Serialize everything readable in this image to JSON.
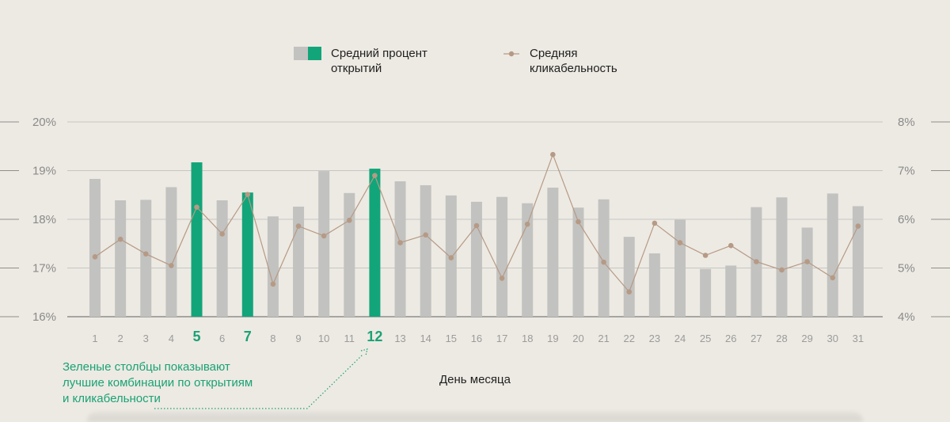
{
  "chart_data": {
    "type": "bar",
    "xlabel": "День месяца",
    "categories": [
      "1",
      "2",
      "3",
      "4",
      "5",
      "6",
      "7",
      "8",
      "9",
      "10",
      "11",
      "12",
      "13",
      "14",
      "15",
      "16",
      "17",
      "18",
      "19",
      "20",
      "21",
      "22",
      "23",
      "24",
      "25",
      "26",
      "27",
      "28",
      "29",
      "30",
      "31"
    ],
    "highlighted": [
      "5",
      "7",
      "12"
    ],
    "y_left": {
      "ylim": [
        16,
        20
      ],
      "ticks": [
        "16%",
        "17%",
        "18%",
        "19%",
        "20%"
      ]
    },
    "y_right": {
      "ylim": [
        4,
        8
      ],
      "ticks": [
        "4%",
        "5%",
        "6%",
        "7%",
        "8%"
      ]
    },
    "series": [
      {
        "name": "Средний процент открытий",
        "type": "bar",
        "axis": "left",
        "values": [
          18.83,
          18.39,
          18.4,
          18.66,
          19.17,
          18.39,
          18.55,
          18.06,
          18.26,
          18.99,
          18.54,
          19.04,
          18.78,
          18.7,
          18.49,
          18.36,
          18.46,
          18.33,
          18.65,
          18.24,
          18.41,
          17.64,
          17.3,
          17.99,
          16.98,
          17.05,
          18.25,
          18.45,
          17.83,
          18.53,
          18.27
        ]
      },
      {
        "name": "Средняя кликабельность",
        "type": "line",
        "axis": "right",
        "values": [
          5.23,
          5.59,
          5.29,
          5.05,
          6.25,
          5.7,
          6.51,
          4.67,
          5.86,
          5.66,
          5.98,
          6.9,
          5.52,
          5.68,
          5.21,
          5.87,
          4.79,
          5.9,
          7.33,
          5.95,
          5.12,
          4.51,
          5.92,
          5.52,
          5.26,
          5.46,
          5.13,
          4.96,
          5.13,
          4.8,
          5.86
        ]
      }
    ],
    "legend": {
      "open_rate": [
        "Средний процент",
        "открытий"
      ],
      "ctr": [
        "Средняя",
        "кликабельность"
      ]
    },
    "annotation": [
      "Зеленые столбцы показывают",
      "лучшие комбинации по открытиям",
      "и кликабельности"
    ],
    "colors": {
      "bar": "#c2c2c0",
      "bar_highlight": "#12a57a",
      "line": "#b69a85",
      "grid": "#c6c6c4",
      "axis": "#8e8e8c",
      "annotation": "#1aa276",
      "background": "#edeae3"
    },
    "grid": true,
    "legend_position": "top-center"
  }
}
